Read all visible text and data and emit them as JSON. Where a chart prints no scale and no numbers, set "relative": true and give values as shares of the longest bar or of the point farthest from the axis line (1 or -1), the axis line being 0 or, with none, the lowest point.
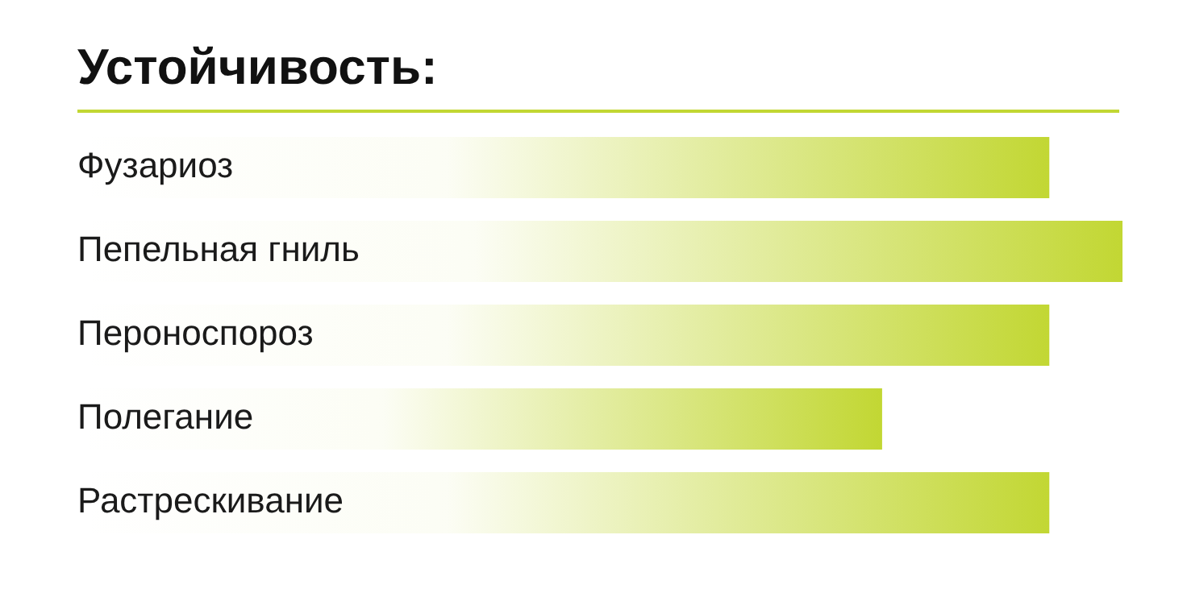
{
  "chart_data": {
    "type": "bar",
    "orientation": "horizontal",
    "relative": true,
    "title": "Устойчивость:",
    "categories": [
      "Фузариоз",
      "Пепельная гниль",
      "Пероноспороз",
      "Полегание",
      "Растрескивание"
    ],
    "values": [
      0.93,
      1,
      0.93,
      0.77,
      0.93
    ],
    "color": "#c2d733",
    "legend": false
  }
}
